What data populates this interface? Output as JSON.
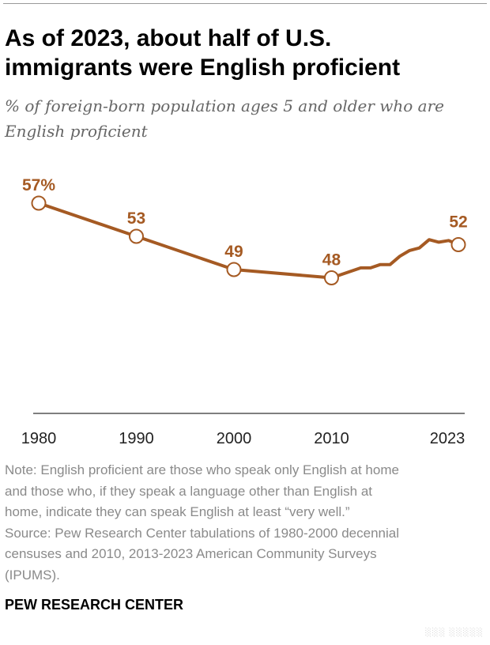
{
  "title_lines": [
    "As of 2023, about half of U.S.",
    "immigrants were English proficient"
  ],
  "subtitle_lines": [
    "% of foreign-born population ages 5 and older who are",
    "English proficient"
  ],
  "chart_data": {
    "type": "line",
    "title": "As of 2023, about half of U.S. immigrants were English proficient",
    "subtitle": "% of foreign-born population ages 5 and older who are English proficient",
    "xlabel": "",
    "ylabel": "",
    "x_ticks": [
      "1980",
      "1990",
      "2000",
      "2010",
      "2023"
    ],
    "series": [
      {
        "color": "#a55a23",
        "x": [
          1980,
          1990,
          2000,
          2010,
          2013,
          2014,
          2015,
          2016,
          2017,
          2018,
          2019,
          2020,
          2021,
          2022,
          2023
        ],
        "values": [
          57,
          53,
          49,
          48,
          49.2,
          49.2,
          49.6,
          49.6,
          50.6,
          51.3,
          51.6,
          52.6,
          52.3,
          52.5,
          52
        ]
      }
    ],
    "markers": [
      {
        "x": 1980,
        "label": "57%"
      },
      {
        "x": 1990,
        "label": "53"
      },
      {
        "x": 2000,
        "label": "49"
      },
      {
        "x": 2010,
        "label": "48"
      },
      {
        "x": 2023,
        "label": "52"
      }
    ],
    "grid": false,
    "legend": "none"
  },
  "note_lines": [
    "Note: English proficient are those who speak only English at home",
    "and those who, if they speak a language other than English at",
    "home, indicate they can speak English at least “very well.”",
    "Source: Pew Research Center tabulations of 1980-2000 decennial",
    "censuses and 2010, 2013-2023 American Community Surveys",
    "(IPUMS)."
  ],
  "footer": "PEW RESEARCH CENTER",
  "watermark": "░░░ ░░░░░"
}
